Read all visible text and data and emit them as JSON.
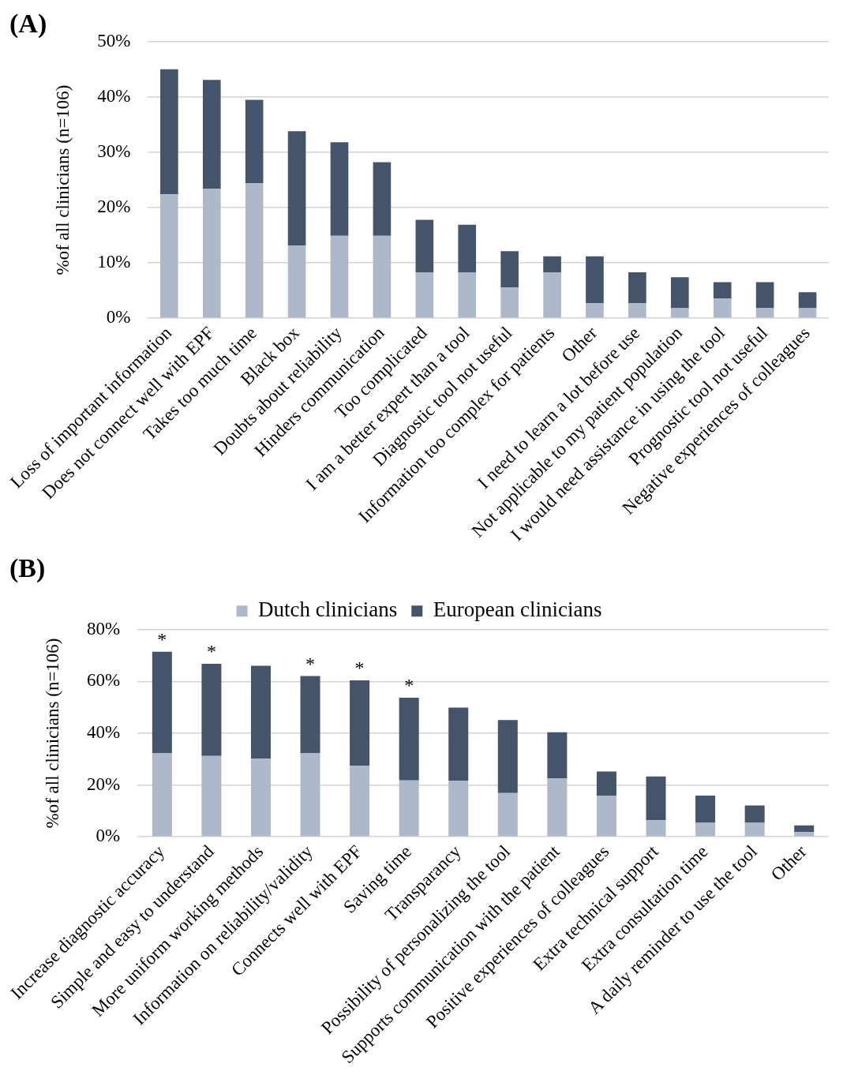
{
  "chart_data": [
    {
      "type": "bar",
      "title": "(A)",
      "ylabel": "%of all clinicians (n=106)",
      "categories": [
        "Loss of important information",
        "Does not connect well with EPF",
        "Takes too much time",
        "Black box",
        "Doubts about reliability",
        "Hinders communication",
        "Too complicated",
        "I am a better expert than a tool",
        "Diagnostic tool not useful",
        "Information too complex for patients",
        "Other",
        "I need to learn a lot before use",
        "Not applicable to my patient population",
        "I would need assistance in using the tool",
        "Prognostic tool not useful",
        "Negative experiences of colleagues"
      ],
      "series": [
        {
          "color": "#adb9ca",
          "values": [
            22.4,
            23.4,
            24.4,
            13.1,
            14.9,
            14.9,
            8.3,
            8.3,
            5.6,
            8.3,
            2.7,
            2.7,
            1.8,
            3.6,
            1.8,
            1.8
          ]
        },
        {
          "color": "#44546a",
          "values": [
            22.6,
            19.7,
            15.1,
            20.7,
            16.9,
            13.3,
            9.5,
            8.6,
            6.5,
            2.9,
            8.5,
            5.6,
            5.6,
            2.9,
            4.7,
            2.9
          ]
        }
      ],
      "stacked": true,
      "ylim": [
        0,
        50
      ],
      "yticks": [
        {
          "value": 0,
          "label": "0%"
        },
        {
          "value": 10,
          "label": "10%"
        },
        {
          "value": 20,
          "label": "20%"
        },
        {
          "value": 30,
          "label": "30%"
        },
        {
          "value": 40,
          "label": "40%"
        },
        {
          "value": 50,
          "label": "50%"
        }
      ],
      "grid": "y",
      "legend": false
    },
    {
      "type": "bar",
      "title": "(B)",
      "ylabel": "%of all clinicians (n=106)",
      "categories": [
        "Increase diagnostic accuracy",
        "Simple and easy to understand",
        "More uniform working methods",
        "Information on reliability/validity",
        "Connects well with EPF",
        "Saving time",
        "Transparancy",
        "Possibility of personalizing the tool",
        "Supports communication with the patient",
        "Positive experiences of colleagues",
        "Extra technical support",
        "Extra consultation time",
        "A daily reminder to use the tool",
        "Other"
      ],
      "series": [
        {
          "name": "Dutch clinicians",
          "color": "#adb9ca",
          "values": [
            32.2,
            31.2,
            30.2,
            32.2,
            27.5,
            21.8,
            21.7,
            16.9,
            22.6,
            15.9,
            6.4,
            5.4,
            5.4,
            1.8
          ]
        },
        {
          "name": "European clinicians",
          "color": "#44546a",
          "values": [
            39.3,
            35.6,
            35.9,
            29.9,
            32.9,
            31.9,
            28.2,
            28.2,
            17.8,
            9.3,
            16.9,
            10.5,
            6.7,
            2.6
          ]
        }
      ],
      "stacked": true,
      "ylim": [
        0,
        80
      ],
      "yticks": [
        {
          "value": 0,
          "label": "0%"
        },
        {
          "value": 20,
          "label": "20%"
        },
        {
          "value": 40,
          "label": "40%"
        },
        {
          "value": 60,
          "label": "60%"
        },
        {
          "value": 80,
          "label": "80%"
        }
      ],
      "grid": "y",
      "legend": "top",
      "annotations": [
        {
          "text": "*",
          "x": "Increase diagnostic accuracy",
          "y": 71.5
        },
        {
          "text": "*",
          "x": "Simple and easy to understand",
          "y": 66.8
        },
        {
          "text": "*",
          "x": "Information on reliability/validity",
          "y": 62.1
        },
        {
          "text": "*",
          "x": "Connects well with EPF",
          "y": 60.4
        },
        {
          "text": "*",
          "x": "Saving time",
          "y": 53.7
        }
      ]
    }
  ]
}
